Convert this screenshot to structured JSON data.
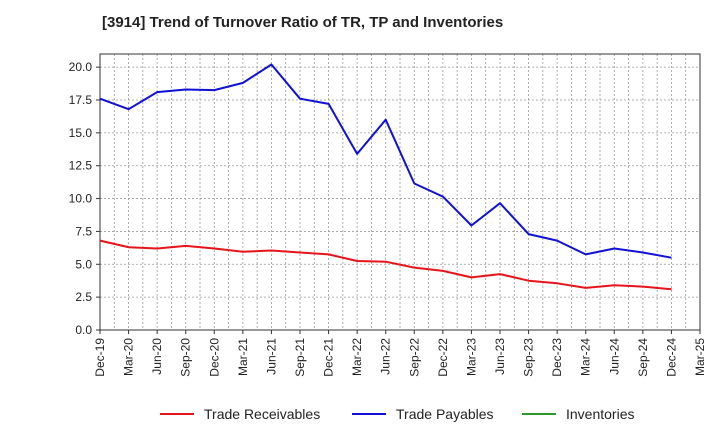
{
  "chart_data": {
    "type": "line",
    "title": "[3914]  Trend of Turnover Ratio of TR, TP and Inventories",
    "xlabel": "",
    "ylabel": "",
    "x_ticks": [
      "Dec-19",
      "Mar-20",
      "Jun-20",
      "Sep-20",
      "Dec-20",
      "Mar-21",
      "Jun-21",
      "Sep-21",
      "Dec-21",
      "Mar-22",
      "Jun-22",
      "Sep-22",
      "Dec-22",
      "Mar-23",
      "Jun-23",
      "Sep-23",
      "Dec-23",
      "Mar-24",
      "Jun-24",
      "Sep-24",
      "Dec-24",
      "Mar-25"
    ],
    "y_ticks": [
      "0.0",
      "2.5",
      "5.0",
      "7.5",
      "10.0",
      "12.5",
      "15.0",
      "17.5",
      "20.0"
    ],
    "ylim": [
      0,
      21
    ],
    "grid": true,
    "legend_position": "bottom",
    "series": [
      {
        "name": "Trade Receivables",
        "color": "#e8141a",
        "x": [
          "Dec-19",
          "Mar-20",
          "Jun-20",
          "Sep-20",
          "Dec-20",
          "Mar-21",
          "Jun-21",
          "Sep-21",
          "Dec-21",
          "Mar-22",
          "Jun-22",
          "Sep-22",
          "Dec-22",
          "Mar-23",
          "Jun-23",
          "Sep-23",
          "Dec-23",
          "Mar-24",
          "Jun-24",
          "Sep-24",
          "Dec-24"
        ],
        "values": [
          6.8,
          6.3,
          6.2,
          6.4,
          6.2,
          5.95,
          6.05,
          5.9,
          5.75,
          5.25,
          5.2,
          4.75,
          4.5,
          4.0,
          4.25,
          3.75,
          3.55,
          3.2,
          3.4,
          3.3,
          3.1
        ]
      },
      {
        "name": "Trade Payables",
        "color": "#1010d8",
        "x": [
          "Dec-19",
          "Mar-20",
          "Jun-20",
          "Sep-20",
          "Dec-20",
          "Mar-21",
          "Jun-21",
          "Sep-21",
          "Dec-21",
          "Mar-22",
          "Jun-22",
          "Sep-22",
          "Dec-22",
          "Mar-23",
          "Jun-23",
          "Sep-23",
          "Dec-23",
          "Mar-24",
          "Jun-24",
          "Sep-24",
          "Dec-24"
        ],
        "values": [
          17.6,
          16.8,
          18.1,
          18.3,
          18.25,
          18.8,
          20.2,
          17.6,
          17.2,
          13.4,
          16.0,
          11.15,
          10.15,
          7.95,
          9.65,
          7.3,
          6.8,
          5.75,
          6.2,
          5.9,
          5.5
        ]
      },
      {
        "name": "Inventories",
        "color": "#2a9a2a",
        "x": [],
        "values": []
      }
    ]
  }
}
